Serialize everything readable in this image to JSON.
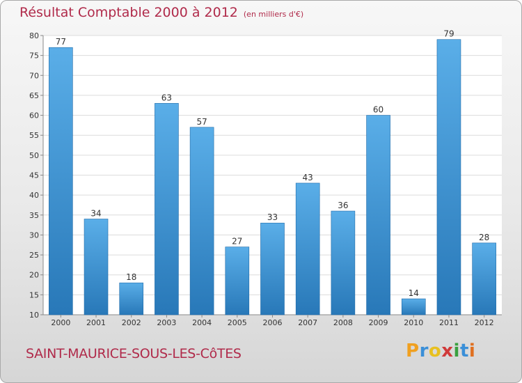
{
  "title": "Résultat Comptable 2000 à 2012",
  "subtitle": "(en milliers d'€)",
  "commune": "SAINT-MAURICE-SOUS-LES-CôTES",
  "logo": {
    "letters": [
      "P",
      "r",
      "o",
      "x",
      "i",
      "t",
      "i"
    ],
    "colors": [
      "#f0a020",
      "#3a8fd8",
      "#e8c020",
      "#d03a3a",
      "#3aa040",
      "#3a8fd8",
      "#e07020"
    ]
  },
  "colors": {
    "bar_light": "#5aaee8",
    "bar_dark": "#2878b8",
    "accent": "#b02a4a"
  },
  "chart_data": {
    "type": "bar",
    "categories": [
      "2000",
      "2001",
      "2002",
      "2003",
      "2004",
      "2005",
      "2006",
      "2007",
      "2008",
      "2009",
      "2010",
      "2011",
      "2012"
    ],
    "values": [
      77,
      34,
      18,
      63,
      57,
      27,
      33,
      43,
      36,
      60,
      14,
      79,
      28
    ],
    "ylim": [
      10,
      80
    ],
    "yticks": [
      10,
      15,
      20,
      25,
      30,
      35,
      40,
      45,
      50,
      55,
      60,
      65,
      70,
      75,
      80
    ],
    "grid": true,
    "data_labels": true
  }
}
